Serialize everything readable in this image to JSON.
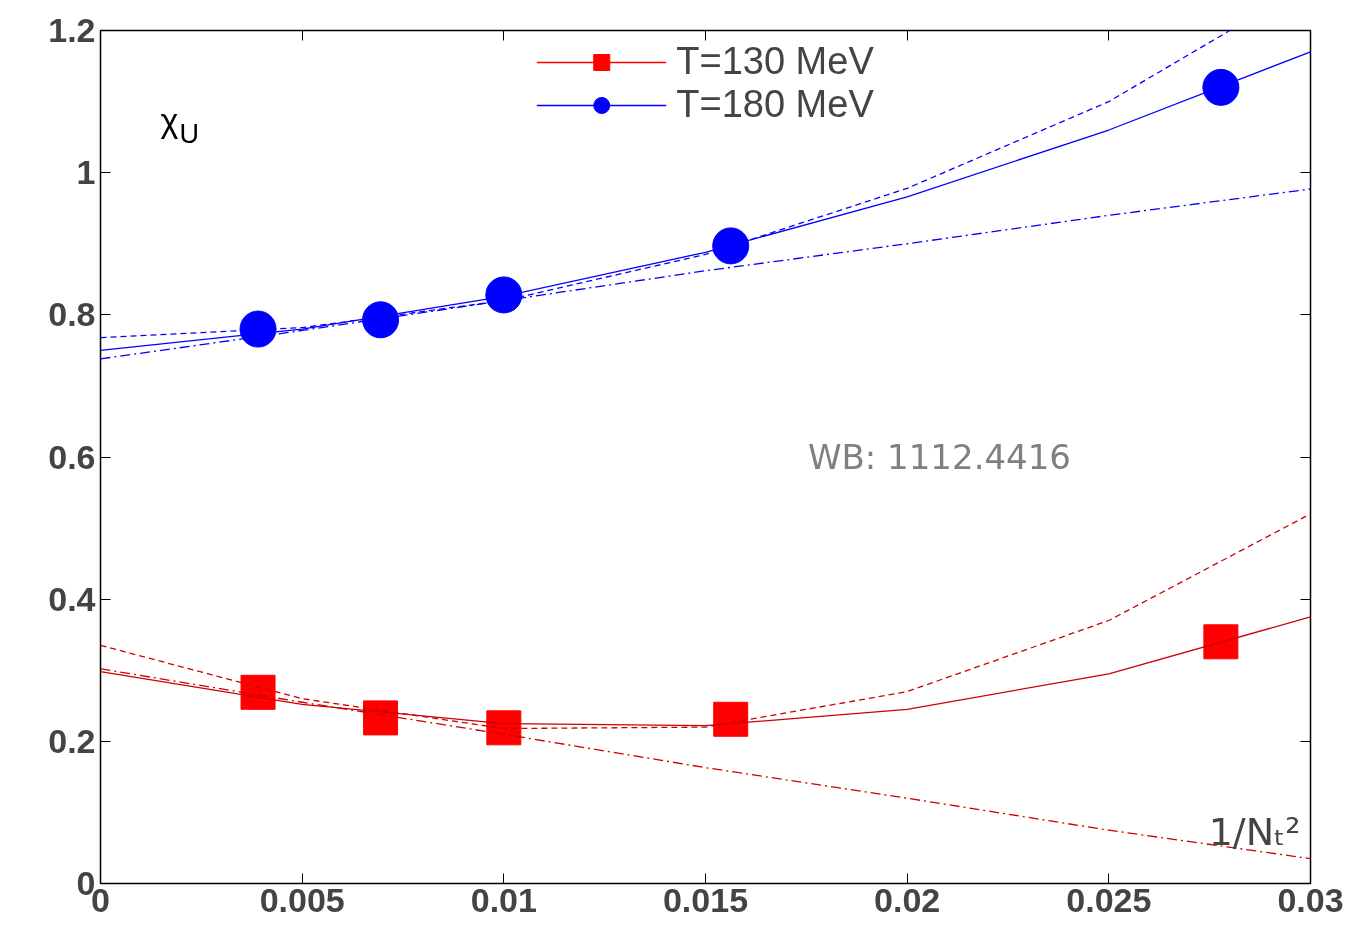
{
  "chart_data": {
    "type": "scatter",
    "xlabel": "1/Nₜ²",
    "ylabel": "χ$_{U}$",
    "annotations": [
      "WB: 1112.4416"
    ],
    "xlim": [
      0,
      0.03
    ],
    "ylim": [
      0,
      1.2
    ],
    "xticks": [
      0,
      0.005,
      0.01,
      0.015,
      0.02,
      0.025,
      0.03
    ],
    "yticks": [
      0,
      0.2,
      0.4,
      0.6,
      0.8,
      1,
      1.2
    ],
    "grid": false,
    "legend": "top",
    "series": [
      {
        "name": "T=130 MeV",
        "color": "#ff0000",
        "marker": "square",
        "x": [
          0.003906,
          0.006944,
          0.01,
          0.015625,
          0.027778
        ],
        "values": [
          0.269,
          0.233,
          0.219,
          0.231,
          0.34
        ]
      },
      {
        "name": "T=180 MeV",
        "color": "#0000ff",
        "marker": "circle",
        "x": [
          0.003906,
          0.006944,
          0.01,
          0.015625,
          0.027778
        ],
        "values": [
          0.78,
          0.793,
          0.828,
          0.897,
          1.12
        ]
      },
      {
        "type": "line",
        "color": "#0000ff",
        "line_style": "solid",
        "x": [
          0,
          0.005,
          0.01,
          0.015,
          0.02,
          0.025,
          0.03
        ],
        "values": [
          0.75,
          0.78,
          0.826,
          0.888,
          0.966,
          1.06,
          1.17
        ]
      },
      {
        "type": "line",
        "color": "#0000ff",
        "line_style": "dashed",
        "x": [
          0,
          0.005,
          0.01,
          0.015,
          0.02,
          0.025,
          0.028
        ],
        "values": [
          0.768,
          0.782,
          0.82,
          0.885,
          0.978,
          1.1,
          1.2
        ]
      },
      {
        "type": "line",
        "color": "#0000ff",
        "line_style": "dashdot",
        "x": [
          0,
          0.005,
          0.01,
          0.015,
          0.02,
          0.025,
          0.03
        ],
        "values": [
          0.738,
          0.778,
          0.82,
          0.862,
          0.9,
          0.94,
          0.977
        ]
      },
      {
        "type": "line",
        "color": "#cc0000",
        "line_style": "solid",
        "x": [
          0,
          0.005,
          0.01,
          0.015,
          0.02,
          0.025,
          0.03
        ],
        "values": [
          0.298,
          0.252,
          0.225,
          0.222,
          0.245,
          0.295,
          0.375
        ]
      },
      {
        "type": "line",
        "color": "#cc0000",
        "line_style": "dashed",
        "x": [
          0,
          0.005,
          0.01,
          0.015,
          0.02,
          0.025,
          0.03
        ],
        "values": [
          0.335,
          0.26,
          0.218,
          0.22,
          0.27,
          0.37,
          0.52
        ]
      },
      {
        "type": "line",
        "color": "#cc0000",
        "line_style": "dashdot",
        "x": [
          0,
          0.005,
          0.01,
          0.015,
          0.02,
          0.025,
          0.03
        ],
        "values": [
          0.302,
          0.255,
          0.21,
          0.163,
          0.12,
          0.075,
          0.035
        ]
      }
    ]
  }
}
